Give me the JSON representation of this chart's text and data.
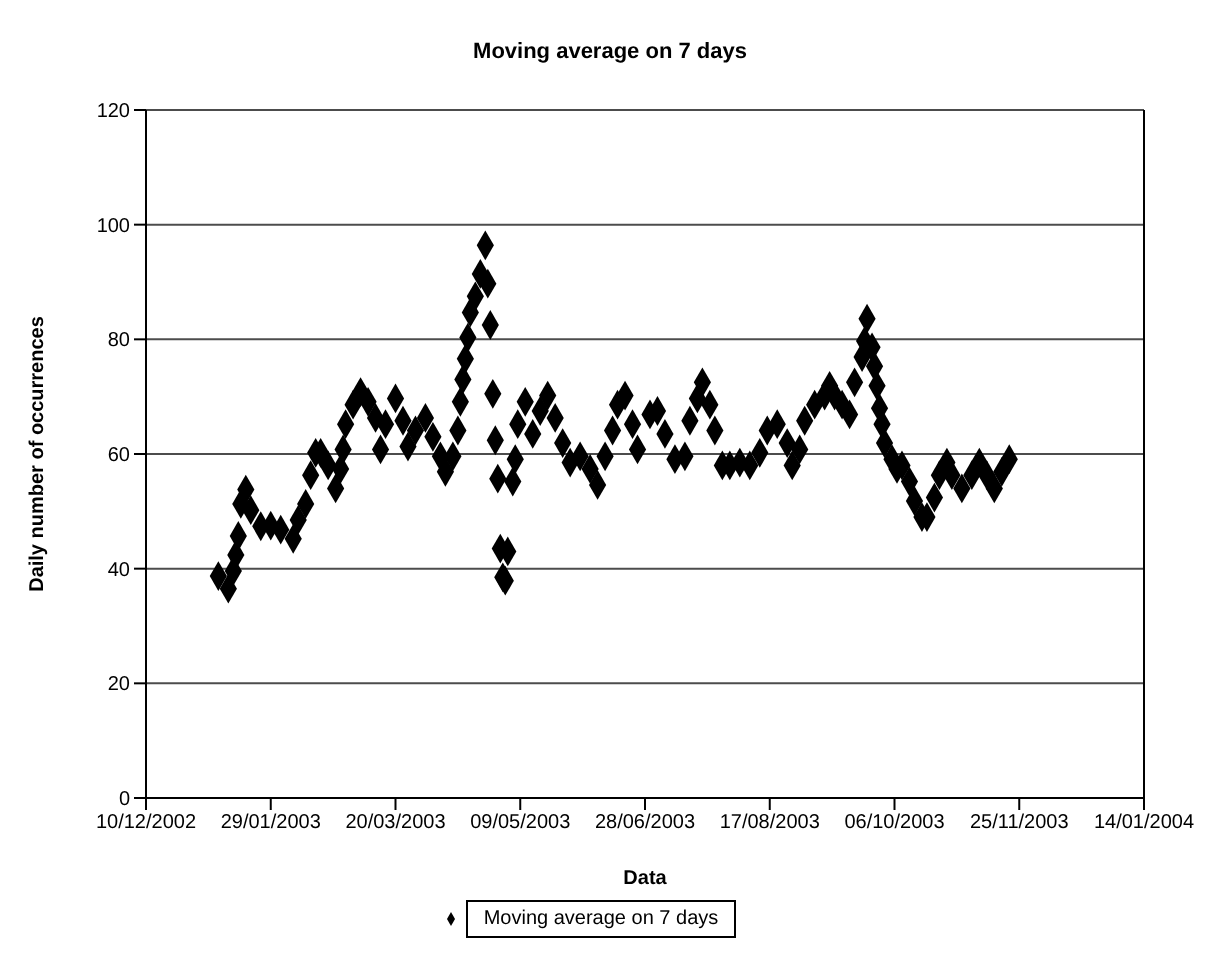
{
  "chart_data": {
    "type": "scatter",
    "title": "Moving average on 7 days",
    "xlabel": "Data",
    "ylabel": "Daily number of occurrences",
    "xlim": [
      "2002-12-10",
      "2004-01-14"
    ],
    "xticks": [
      {
        "value": "2002-12-10",
        "label": "10/12/2002"
      },
      {
        "value": "2003-01-29",
        "label": "29/01/2003"
      },
      {
        "value": "2003-03-20",
        "label": "20/03/2003"
      },
      {
        "value": "2003-05-09",
        "label": "09/05/2003"
      },
      {
        "value": "2003-06-28",
        "label": "28/06/2003"
      },
      {
        "value": "2003-08-17",
        "label": "17/08/2003"
      },
      {
        "value": "2003-10-06",
        "label": "06/10/2003"
      },
      {
        "value": "2003-11-25",
        "label": "25/11/2003"
      },
      {
        "value": "2004-01-14",
        "label": "14/01/2004"
      }
    ],
    "ylim": [
      0,
      120
    ],
    "yticks": [
      0,
      20,
      40,
      60,
      80,
      100,
      120
    ],
    "grid": "y",
    "legend": "bottom",
    "marker": "diamond",
    "series": [
      {
        "name": "Moving average on 7 days",
        "color": "#000000",
        "x": [
          "2003-01-08",
          "2003-01-12",
          "2003-01-14",
          "2003-01-15",
          "2003-01-16",
          "2003-01-17",
          "2003-01-19",
          "2003-01-21",
          "2003-01-25",
          "2003-01-29",
          "2003-02-02",
          "2003-02-07",
          "2003-02-09",
          "2003-02-12",
          "2003-02-14",
          "2003-02-16",
          "2003-02-18",
          "2003-02-21",
          "2003-02-24",
          "2003-02-26",
          "2003-02-27",
          "2003-02-28",
          "2003-03-03",
          "2003-03-06",
          "2003-03-09",
          "2003-03-12",
          "2003-03-14",
          "2003-03-16",
          "2003-03-20",
          "2003-03-23",
          "2003-03-25",
          "2003-03-28",
          "2003-04-01",
          "2003-04-04",
          "2003-04-07",
          "2003-04-09",
          "2003-04-12",
          "2003-04-14",
          "2003-04-15",
          "2003-04-16",
          "2003-04-17",
          "2003-04-18",
          "2003-04-19",
          "2003-04-21",
          "2003-04-23",
          "2003-04-25",
          "2003-04-26",
          "2003-04-27",
          "2003-04-28",
          "2003-04-29",
          "2003-04-30",
          "2003-05-01",
          "2003-05-02",
          "2003-05-03",
          "2003-05-04",
          "2003-05-06",
          "2003-05-07",
          "2003-05-08",
          "2003-05-11",
          "2003-05-14",
          "2003-05-17",
          "2003-05-20",
          "2003-05-23",
          "2003-05-26",
          "2003-05-29",
          "2003-06-02",
          "2003-06-06",
          "2003-06-09",
          "2003-06-12",
          "2003-06-15",
          "2003-06-17",
          "2003-06-20",
          "2003-06-23",
          "2003-06-25",
          "2003-06-30",
          "2003-07-03",
          "2003-07-06",
          "2003-07-10",
          "2003-07-14",
          "2003-07-16",
          "2003-07-19",
          "2003-07-21",
          "2003-07-24",
          "2003-07-26",
          "2003-07-29",
          "2003-08-01",
          "2003-08-05",
          "2003-08-09",
          "2003-08-13",
          "2003-08-16",
          "2003-08-20",
          "2003-08-24",
          "2003-08-26",
          "2003-08-29",
          "2003-08-31",
          "2003-09-04",
          "2003-09-08",
          "2003-09-10",
          "2003-09-12",
          "2003-09-15",
          "2003-09-18",
          "2003-09-20",
          "2003-09-23",
          "2003-09-24",
          "2003-09-25",
          "2003-09-27",
          "2003-09-28",
          "2003-09-29",
          "2003-09-30",
          "2003-10-01",
          "2003-10-02",
          "2003-10-05",
          "2003-10-07",
          "2003-10-09",
          "2003-10-12",
          "2003-10-14",
          "2003-10-17",
          "2003-10-19",
          "2003-10-22",
          "2003-10-24",
          "2003-10-27",
          "2003-10-29",
          "2003-11-02",
          "2003-11-06",
          "2003-11-09",
          "2003-11-12",
          "2003-11-15",
          "2003-11-18",
          "2003-11-21"
        ],
        "values": [
          38.7,
          36.5,
          39.6,
          42.4,
          45.7,
          51.3,
          53.8,
          50.2,
          47.4,
          47.5,
          46.8,
          45.2,
          48.5,
          51.3,
          56.3,
          60.2,
          60.2,
          58,
          54,
          57.4,
          60.8,
          65.2,
          68.6,
          70.8,
          69.1,
          66.3,
          60.8,
          65.2,
          69.7,
          65.8,
          61.3,
          64.1,
          66.3,
          63,
          59.6,
          56.9,
          59.6,
          64.1,
          69.1,
          73,
          76.6,
          80.3,
          84.7,
          87.5,
          91.4,
          96.4,
          89.7,
          82.5,
          70.5,
          62.4,
          55.7,
          43.5,
          38.5,
          37.9,
          43,
          55.2,
          59.1,
          65.2,
          69.1,
          63.5,
          67.5,
          70.2,
          66.3,
          61.9,
          58.5,
          59.6,
          57.4,
          54.6,
          59.6,
          64.1,
          68.6,
          70.2,
          65.2,
          60.8,
          66.9,
          67.5,
          63.5,
          59.1,
          59.6,
          65.8,
          69.7,
          72.5,
          68.6,
          64.1,
          58,
          58,
          58.5,
          58,
          60.2,
          64.1,
          65.2,
          61.9,
          58,
          60.8,
          65.8,
          68.6,
          70.2,
          71.9,
          70.2,
          68.6,
          66.9,
          72.5,
          76.9,
          79.7,
          83.6,
          78.6,
          75.3,
          71.9,
          68,
          65.2,
          61.9,
          59.1,
          57.4,
          58,
          55.2,
          51.8,
          49,
          49,
          52.4,
          56.3,
          58.5,
          56.3,
          54,
          56.3,
          58.5,
          56.3,
          54,
          56.9,
          59.1
        ]
      }
    ]
  }
}
